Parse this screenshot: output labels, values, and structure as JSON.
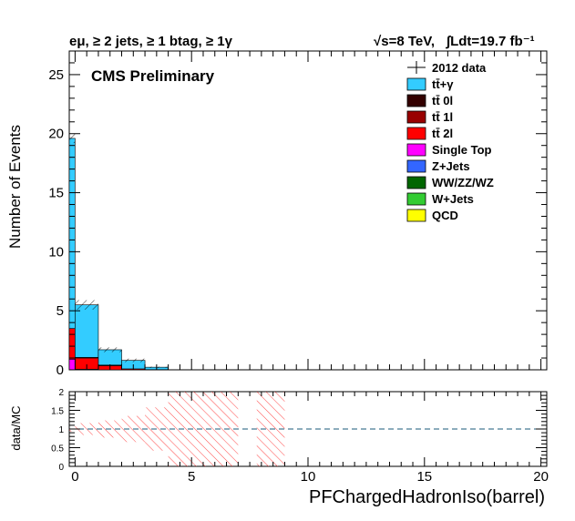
{
  "header": {
    "selection": "eμ, ≥ 2 jets, ≥ 1 btag, ≥ 1γ",
    "energy": "√s=8 TeV,",
    "lumi": "∫Ldt=19.7 fb⁻¹"
  },
  "chart_data": [
    {
      "panel": "main",
      "type": "bar",
      "stacked": true,
      "ylabel": "Number of Events",
      "xlim": [
        -0.25,
        20.25
      ],
      "ylim": [
        0,
        27
      ],
      "y_ticks": [
        0,
        5,
        10,
        15,
        20,
        25
      ],
      "x_ticks": [
        0,
        5,
        10,
        15,
        20
      ],
      "annotation": "CMS Preliminary",
      "bin_edges": [
        -0.25,
        0.0,
        1.0,
        2.0,
        3.0,
        4.0
      ],
      "series": [
        {
          "name": "QCD",
          "color": "#ffff00",
          "values": [
            0,
            0,
            0,
            0,
            0
          ]
        },
        {
          "name": "W+Jets",
          "color": "#33cc33",
          "values": [
            0,
            0,
            0,
            0,
            0
          ]
        },
        {
          "name": "WW/ZZ/WZ",
          "color": "#006600",
          "values": [
            0,
            0,
            0,
            0,
            0
          ]
        },
        {
          "name": "Z+Jets",
          "color": "#3366ff",
          "values": [
            0,
            0,
            0,
            0,
            0
          ]
        },
        {
          "name": "Single Top",
          "color": "#ff00ff",
          "values": [
            0.9,
            0.05,
            0,
            0,
            0
          ]
        },
        {
          "name": "tt̄ 2l",
          "color": "#ff0000",
          "values": [
            2.6,
            0.95,
            0.35,
            0.08,
            0.02
          ]
        },
        {
          "name": "tt̄ 1l",
          "color": "#990000",
          "values": [
            0,
            0.05,
            0.05,
            0,
            0
          ]
        },
        {
          "name": "tt̄ 0l",
          "color": "#330000",
          "values": [
            0,
            0,
            0,
            0,
            0
          ]
        },
        {
          "name": "tt̄+γ",
          "color": "#33ccff",
          "values": [
            16.1,
            4.45,
            1.3,
            0.72,
            0.2
          ]
        }
      ],
      "mc_total": [
        19.6,
        5.5,
        1.7,
        0.8,
        0.22
      ],
      "mc_uncertainty": [
        0.4,
        0.4,
        0.2,
        0.15,
        0.05
      ],
      "data": {
        "name": "2012 data",
        "values": []
      },
      "legend": [
        {
          "label": "2012 data",
          "style": "data"
        },
        {
          "label": "tt̄+γ",
          "color": "#33ccff"
        },
        {
          "label": "tt̄ 0l",
          "color": "#330000"
        },
        {
          "label": "tt̄ 1l",
          "color": "#990000"
        },
        {
          "label": "tt̄ 2l",
          "color": "#ff0000"
        },
        {
          "label": "Single Top",
          "color": "#ff00ff"
        },
        {
          "label": "Z+Jets",
          "color": "#3366ff"
        },
        {
          "label": "WW/ZZ/WZ",
          "color": "#006600"
        },
        {
          "label": "W+Jets",
          "color": "#33cc33"
        },
        {
          "label": "QCD",
          "color": "#ffff00"
        }
      ],
      "legend_position": "top-right"
    },
    {
      "panel": "ratio",
      "type": "bar",
      "ylabel": "data/MC",
      "xlabel": "PFChargedHadronIso(barrel)",
      "xlim": [
        -0.25,
        20.25
      ],
      "ylim": [
        0,
        2
      ],
      "y_ticks": [
        0,
        0.5,
        1,
        1.5,
        2
      ],
      "y_tick_labels": [
        "0",
        "0.5",
        "1",
        "1.5",
        "2"
      ],
      "x_ticks": [
        0,
        5,
        10,
        15,
        20
      ],
      "reference_line": 1,
      "uncertainty_bands": [
        {
          "x0": -0.25,
          "x1": 0.0,
          "lo": 0.93,
          "hi": 1.07
        },
        {
          "x0": 0.0,
          "x1": 1.0,
          "lo": 0.84,
          "hi": 1.16
        },
        {
          "x0": 1.0,
          "x1": 2.0,
          "lo": 0.77,
          "hi": 1.23
        },
        {
          "x0": 2.0,
          "x1": 3.0,
          "lo": 0.65,
          "hi": 1.35
        },
        {
          "x0": 3.0,
          "x1": 4.0,
          "lo": 0.42,
          "hi": 1.58
        },
        {
          "x0": 4.0,
          "x1": 7.0,
          "lo": 0.0,
          "hi": 2.0
        },
        {
          "x0": 7.8,
          "x1": 9.0,
          "lo": 0.0,
          "hi": 2.0
        }
      ]
    }
  ]
}
